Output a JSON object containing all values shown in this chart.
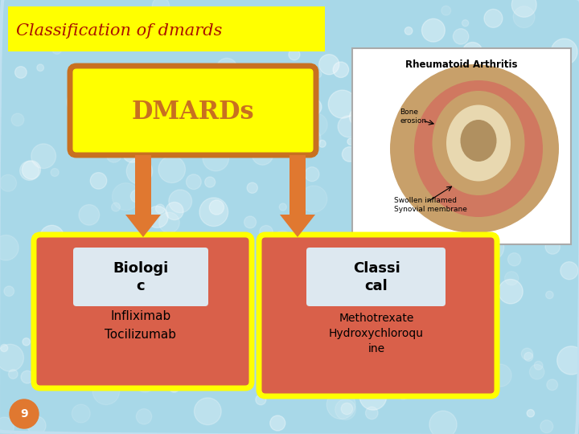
{
  "title": "Classification of dmards",
  "title_color": "#aa1100",
  "title_bg": "#ffff00",
  "bg_color": "#a8d8e8",
  "dmards_label": "DMARDs",
  "dmards_box_bg": "#ffff00",
  "dmards_box_border": "#c87020",
  "bottom_box_bg": "#d9604a",
  "bottom_box_border": "#ffff00",
  "inner_box_bg": "#dde8f0",
  "inner_box_border": "#bbbbbb",
  "arrow_color": "#e07830",
  "slide_num": "9",
  "slide_num_bg": "#e07830",
  "outer_border_color": "#c0e0f0"
}
